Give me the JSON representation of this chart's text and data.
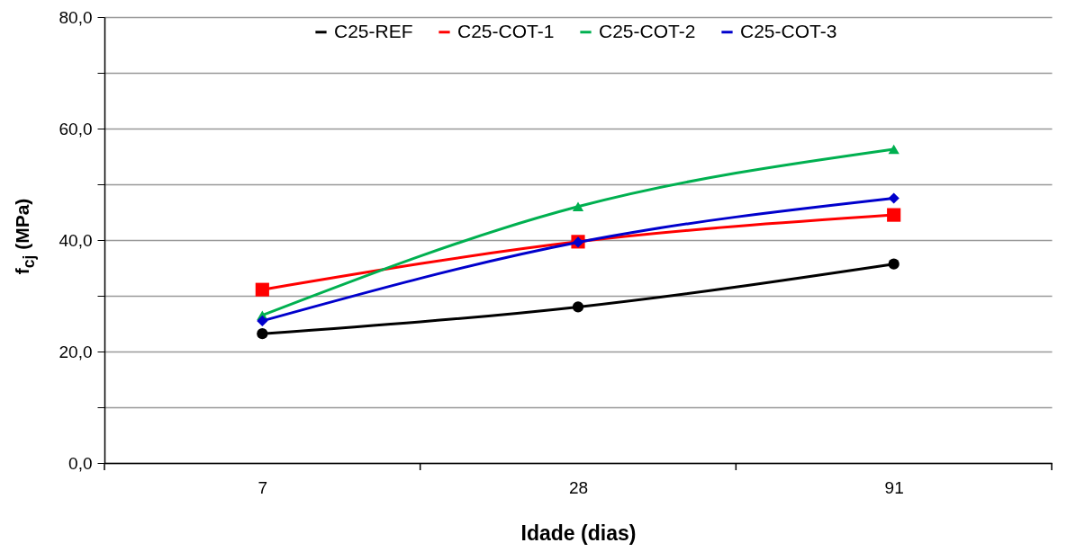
{
  "chart_data": {
    "type": "line",
    "xlabel": "Idade (dias)",
    "ylabel": "f$_{cj}$ (MPa)",
    "categories": [
      "7",
      "28",
      "91"
    ],
    "series": [
      {
        "name": "C25-REF",
        "color": "#000000",
        "marker": "circle",
        "values": [
          23.2,
          28.0,
          35.7
        ]
      },
      {
        "name": "C25-COT-1",
        "color": "#ff0000",
        "marker": "square",
        "values": [
          31.1,
          39.7,
          44.5
        ]
      },
      {
        "name": "C25-COT-2",
        "color": "#00b050",
        "marker": "triangle",
        "values": [
          26.5,
          46.0,
          56.3
        ]
      },
      {
        "name": "C25-COT-3",
        "color": "#0000cc",
        "marker": "diamond",
        "values": [
          25.5,
          39.6,
          47.5
        ]
      }
    ],
    "ylim": [
      0,
      80
    ],
    "yticks": [
      {
        "value": 0,
        "label": "0,0"
      },
      {
        "value": 10,
        "label": null
      },
      {
        "value": 20,
        "label": "20,0"
      },
      {
        "value": 30,
        "label": null
      },
      {
        "value": 40,
        "label": "40,0"
      },
      {
        "value": 50,
        "label": null
      },
      {
        "value": 60,
        "label": "60,0"
      },
      {
        "value": 70,
        "label": null
      },
      {
        "value": 80,
        "label": "80,0"
      }
    ],
    "grid": "y",
    "legend": "top"
  }
}
